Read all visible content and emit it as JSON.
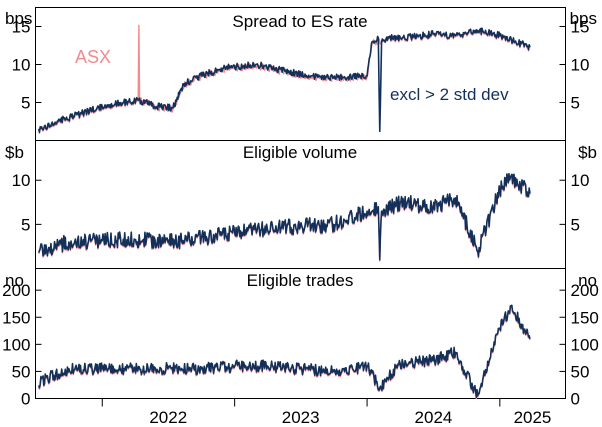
{
  "colors": {
    "asx": "#f28b8e",
    "excl": "#12305a",
    "frame": "#000000"
  },
  "x_axis": {
    "ticks": [
      "2022",
      "2023",
      "2024",
      "2025"
    ],
    "range": [
      "2021-07-01",
      "2025-07-01"
    ],
    "tick_marks": [
      "2022-01-01",
      "2023-01-01",
      "2024-01-01",
      "2025-01-01"
    ]
  },
  "chart_data": [
    {
      "type": "line",
      "title": "Spread to ES rate",
      "ylabel": "bps",
      "ylim": [
        0,
        17.5
      ],
      "yticks": [
        5,
        10,
        15
      ],
      "ytick_labels": [
        "5",
        "10",
        "15"
      ],
      "annotations": [
        {
          "text": "ASX",
          "color": "#f28b8e"
        },
        {
          "text": "excl > 2 std dev",
          "color": "#12305a"
        }
      ],
      "series": [
        {
          "name": "ASX",
          "x": [
            "2021-07-10",
            "2021-09-01",
            "2021-11-01",
            "2022-01-01",
            "2022-03-01",
            "2022-04-10",
            "2022-04-12",
            "2022-04-14",
            "2022-06-01",
            "2022-07-15",
            "2022-08-15",
            "2022-10-01",
            "2022-12-01",
            "2023-03-01",
            "2023-06-01",
            "2023-08-01",
            "2023-10-01",
            "2024-01-01",
            "2024-01-15",
            "2024-03-01",
            "2024-05-01",
            "2024-07-01",
            "2024-09-01",
            "2024-11-01",
            "2025-01-01",
            "2025-03-25"
          ],
          "y": [
            1.5,
            2.5,
            3.5,
            4.5,
            5.0,
            5.3,
            15.3,
            5.5,
            4.5,
            4.3,
            7.5,
            8.5,
            9.5,
            10.0,
            9.0,
            8.5,
            8.3,
            8.5,
            13.0,
            13.5,
            13.6,
            14.0,
            13.8,
            14.5,
            13.8,
            12.3
          ]
        },
        {
          "name": "excl > 2 std dev",
          "x": [
            "2021-07-10",
            "2021-09-01",
            "2021-11-01",
            "2022-01-01",
            "2022-03-01",
            "2022-04-10",
            "2022-06-01",
            "2022-07-15",
            "2022-08-15",
            "2022-10-01",
            "2022-12-01",
            "2023-03-01",
            "2023-06-01",
            "2023-08-01",
            "2023-10-01",
            "2024-01-01",
            "2024-01-15",
            "2024-02-01",
            "2024-02-05",
            "2024-02-10",
            "2024-03-01",
            "2024-05-01",
            "2024-07-01",
            "2024-09-01",
            "2024-11-01",
            "2025-01-01",
            "2025-03-25"
          ],
          "y": [
            1.5,
            2.5,
            3.5,
            4.5,
            5.0,
            5.3,
            4.5,
            4.3,
            7.5,
            8.5,
            9.5,
            10.0,
            9.0,
            8.5,
            8.3,
            8.5,
            13.0,
            13.5,
            1.2,
            13.0,
            13.5,
            13.6,
            14.0,
            13.8,
            14.5,
            13.8,
            12.3
          ]
        }
      ]
    },
    {
      "type": "line",
      "title": "Eligible volume",
      "ylabel": "$b",
      "ylim": [
        0,
        14.5
      ],
      "yticks": [
        5,
        10
      ],
      "ytick_labels": [
        "5",
        "10"
      ],
      "series": [
        {
          "name": "ASX",
          "x": [
            "2021-07-10",
            "2021-10-01",
            "2022-01-01",
            "2022-04-01",
            "2022-07-01",
            "2022-10-01",
            "2023-01-01",
            "2023-04-01",
            "2023-07-01",
            "2023-10-01",
            "2024-01-01",
            "2024-02-01",
            "2024-02-05",
            "2024-02-10",
            "2024-04-01",
            "2024-07-01",
            "2024-09-01",
            "2024-11-01",
            "2025-01-01",
            "2025-02-01",
            "2025-03-25"
          ],
          "y": [
            2.0,
            3.0,
            3.2,
            3.3,
            3.0,
            3.5,
            4.0,
            4.5,
            4.8,
            5.0,
            6.5,
            7.0,
            1.0,
            6.5,
            7.5,
            7.0,
            8.0,
            2.0,
            9.0,
            10.5,
            8.5
          ]
        },
        {
          "name": "excl > 2 std dev",
          "x": [
            "2021-07-10",
            "2021-10-01",
            "2022-01-01",
            "2022-04-01",
            "2022-07-01",
            "2022-10-01",
            "2023-01-01",
            "2023-04-01",
            "2023-07-01",
            "2023-10-01",
            "2024-01-01",
            "2024-02-01",
            "2024-02-05",
            "2024-02-10",
            "2024-04-01",
            "2024-07-01",
            "2024-09-01",
            "2024-11-01",
            "2025-01-01",
            "2025-02-01",
            "2025-03-25"
          ],
          "y": [
            2.0,
            3.0,
            3.2,
            3.3,
            3.0,
            3.5,
            4.0,
            4.5,
            4.8,
            5.0,
            6.5,
            7.0,
            1.0,
            6.5,
            7.5,
            7.0,
            8.0,
            2.0,
            9.0,
            10.5,
            8.5
          ]
        }
      ]
    },
    {
      "type": "line",
      "title": "Eligible trades",
      "ylabel": "no",
      "ylim": [
        0,
        240
      ],
      "yticks": [
        0,
        50,
        100,
        150,
        200
      ],
      "ytick_labels": [
        "0",
        "50",
        "100",
        "150",
        "200"
      ],
      "series": [
        {
          "name": "ASX",
          "x": [
            "2021-07-10",
            "2021-10-01",
            "2022-01-01",
            "2022-04-01",
            "2022-07-01",
            "2022-10-01",
            "2023-01-01",
            "2023-04-01",
            "2023-07-01",
            "2023-10-01",
            "2024-01-01",
            "2024-02-05",
            "2024-04-01",
            "2024-07-01",
            "2024-09-01",
            "2024-11-01",
            "2025-01-01",
            "2025-02-01",
            "2025-03-25"
          ],
          "y": [
            30,
            55,
            55,
            55,
            55,
            55,
            60,
            60,
            55,
            50,
            60,
            20,
            65,
            70,
            85,
            5,
            130,
            170,
            110
          ]
        },
        {
          "name": "excl > 2 std dev",
          "x": [
            "2021-07-10",
            "2021-10-01",
            "2022-01-01",
            "2022-04-01",
            "2022-07-01",
            "2022-10-01",
            "2023-01-01",
            "2023-04-01",
            "2023-07-01",
            "2023-10-01",
            "2024-01-01",
            "2024-02-05",
            "2024-04-01",
            "2024-07-01",
            "2024-09-01",
            "2024-11-01",
            "2025-01-01",
            "2025-02-01",
            "2025-03-25"
          ],
          "y": [
            30,
            55,
            55,
            55,
            55,
            55,
            60,
            60,
            55,
            50,
            60,
            20,
            65,
            70,
            85,
            5,
            130,
            170,
            110
          ]
        }
      ]
    }
  ]
}
